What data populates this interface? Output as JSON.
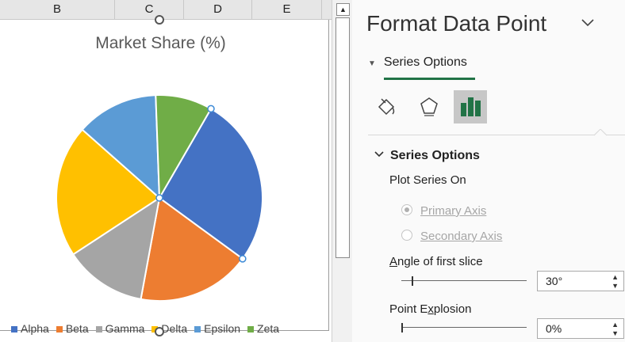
{
  "columns": [
    "B",
    "C",
    "D",
    "E"
  ],
  "chart": {
    "title": "Market Share (%)"
  },
  "chart_data": {
    "type": "pie",
    "title": "Market Share (%)",
    "categories": [
      "Alpha",
      "Beta",
      "Gamma",
      "Delta",
      "Epsilon",
      "Zeta"
    ],
    "values": [
      27,
      18,
      13,
      21,
      13,
      9
    ],
    "colors": [
      "#4472c4",
      "#ed7d31",
      "#a5a5a5",
      "#ffc000",
      "#5b9bd5",
      "#70ad47"
    ],
    "start_angle_deg": 30,
    "selected_point": "Alpha",
    "legend": "bottom"
  },
  "pane": {
    "title": "Format Data Point",
    "tab_label": "Series Options",
    "section_label": "Series Options",
    "plot_series_on": "Plot Series On",
    "primary_axis": "Primary Axis",
    "secondary_axis": "Secondary Axis",
    "angle_label_pre": "",
    "angle_label_ul": "A",
    "angle_label_post": "ngle of first slice",
    "angle_value": "30°",
    "angle_fraction": 0.083,
    "explosion_label_pre": "Point E",
    "explosion_label_ul": "x",
    "explosion_label_post": "plosion",
    "explosion_value": "0%",
    "explosion_fraction": 0.0
  },
  "icons": [
    "fill-line-icon",
    "effects-icon",
    "series-options-icon"
  ]
}
